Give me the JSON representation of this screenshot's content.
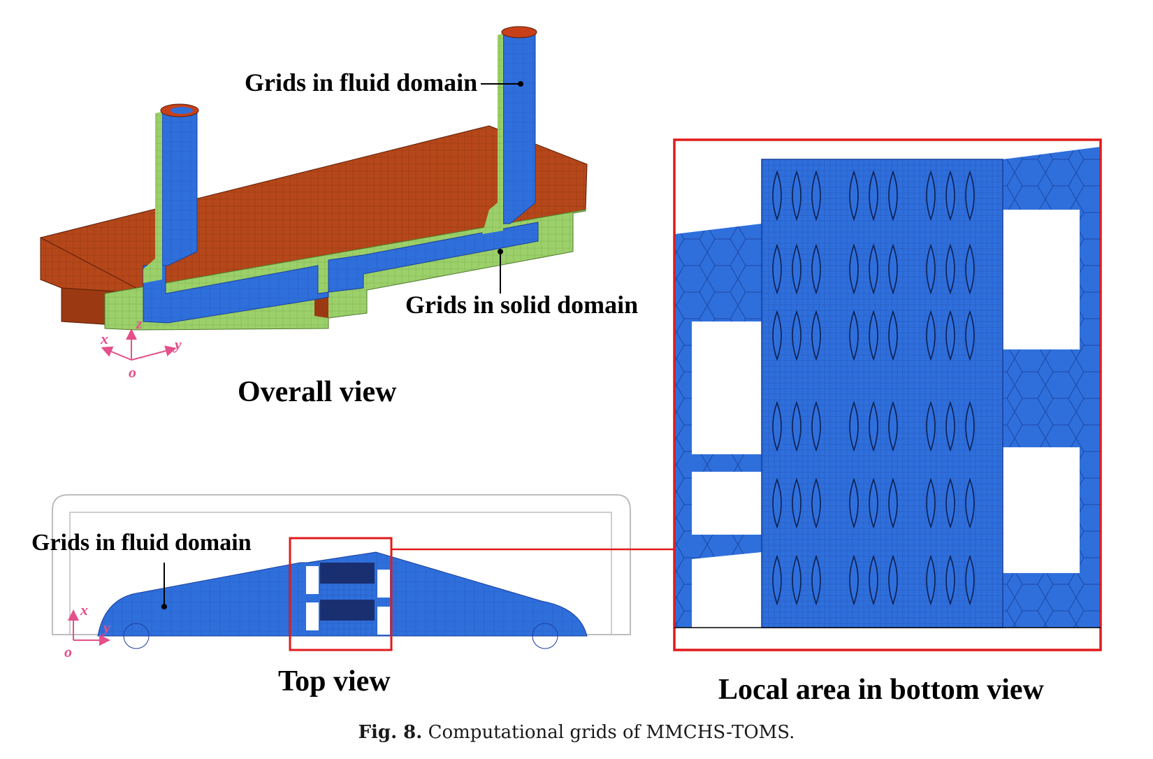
{
  "figure": {
    "labels": {
      "overall_fluid": "Grids in fluid domain",
      "overall_solid": "Grids in solid domain",
      "overall_view": "Overall view",
      "top_fluid": "Grids in fluid domain",
      "top_view": "Top view",
      "local_view": "Local area in bottom view"
    },
    "axes": {
      "overall": {
        "x": "x",
        "y": "y",
        "z": "z",
        "origin": "o"
      },
      "top": {
        "x": "x",
        "y": "y",
        "origin": "o"
      }
    },
    "caption": {
      "number": "Fig. 8.",
      "text": "Computational grids of MMCHS-TOMS."
    },
    "colors": {
      "fluid": "#2f6fdc",
      "solid_green": "#9bd06a",
      "solid_orange": "#b5471a",
      "highlight": "#e01b1b",
      "axis": "#e4508a"
    }
  }
}
